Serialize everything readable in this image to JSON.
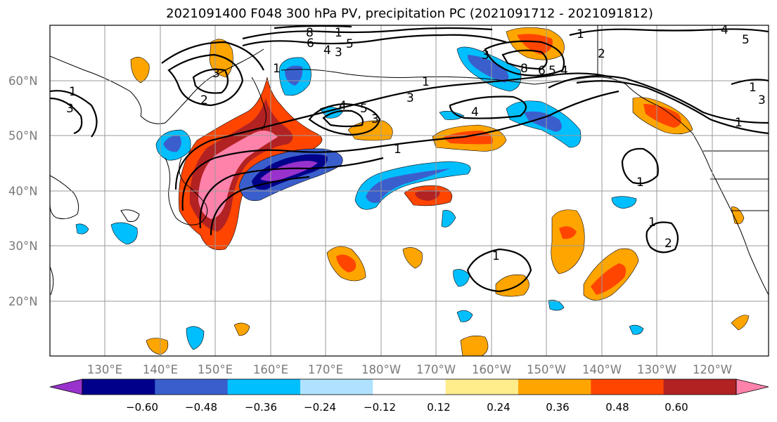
{
  "title": "2021091400 F048 300 hPa PV, precipitation PC (2021091712 - 2021091812)",
  "map": {
    "lat_labels": [
      "60°N",
      "50°N",
      "40°N",
      "30°N",
      "20°N"
    ],
    "lon_labels": [
      "130°E",
      "140°E",
      "150°E",
      "160°E",
      "170°E",
      "180°W",
      "170°W",
      "160°W",
      "150°W",
      "140°W",
      "130°W",
      "120°W"
    ],
    "contour_labels": [
      "8",
      "1",
      "6",
      "4",
      "3",
      "5",
      "3",
      "1",
      "3",
      "2",
      "1",
      "3",
      "4",
      "5",
      "3",
      "4",
      "1",
      "3",
      "8",
      "6",
      "5",
      "4",
      "1",
      "2",
      "4",
      "5",
      "1",
      "1",
      "3",
      "1",
      "1",
      "1",
      "2",
      "1"
    ]
  },
  "colorbar": {
    "labels": [
      "−0.60",
      "−0.48",
      "−0.36",
      "−0.24",
      "−0.12",
      "0.12",
      "0.24",
      "0.36",
      "0.48",
      "0.60"
    ],
    "colors": [
      "#9932CC",
      "#00008B",
      "#3A5FCD",
      "#00BFFF",
      "#B0E2FF",
      "#FFFFFF",
      "#FFEC8B",
      "#FFA500",
      "#FF4500",
      "#B22222",
      "#FF82AB"
    ]
  }
}
